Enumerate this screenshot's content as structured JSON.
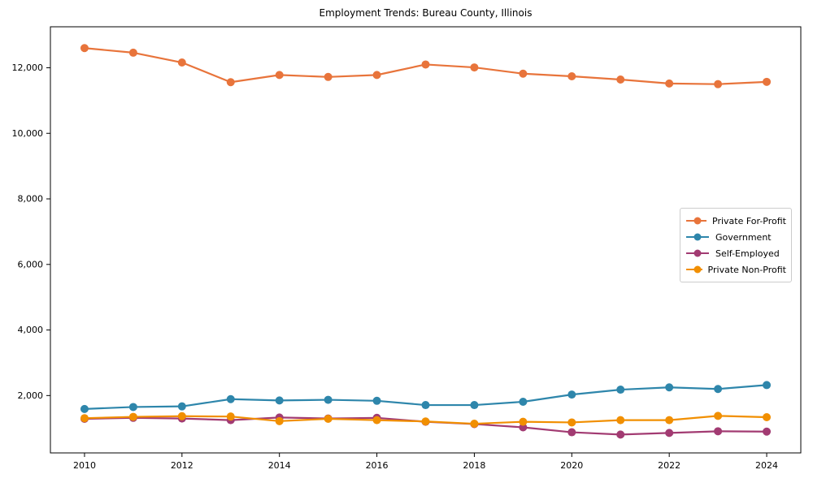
{
  "chart_data": {
    "type": "line",
    "title": "Employment Trends: Bureau County, Illinois",
    "xlabel": "",
    "ylabel": "",
    "x": [
      2010,
      2011,
      2012,
      2013,
      2014,
      2015,
      2016,
      2017,
      2018,
      2019,
      2020,
      2021,
      2022,
      2023,
      2024
    ],
    "series": [
      {
        "name": "Private For-Profit",
        "color": "#E8743B",
        "values": [
          12600,
          12460,
          12160,
          11560,
          11780,
          11720,
          11780,
          12100,
          12010,
          11820,
          11740,
          11640,
          11520,
          11500,
          11570
        ]
      },
      {
        "name": "Government",
        "color": "#2E86AB",
        "values": [
          1590,
          1650,
          1670,
          1890,
          1850,
          1870,
          1840,
          1710,
          1710,
          1810,
          2030,
          2180,
          2250,
          2200,
          2320
        ]
      },
      {
        "name": "Self-Employed",
        "color": "#A23B72",
        "values": [
          1290,
          1320,
          1300,
          1250,
          1330,
          1300,
          1320,
          1200,
          1130,
          1030,
          880,
          810,
          860,
          910,
          900
        ]
      },
      {
        "name": "Private Non-Profit",
        "color": "#F18F01",
        "values": [
          1310,
          1350,
          1370,
          1360,
          1220,
          1290,
          1250,
          1210,
          1140,
          1200,
          1180,
          1250,
          1250,
          1380,
          1340
        ]
      }
    ],
    "xticks": [
      2010,
      2012,
      2014,
      2016,
      2018,
      2020,
      2022,
      2024
    ],
    "yticks": [
      2000,
      4000,
      6000,
      8000,
      10000,
      12000
    ],
    "ytick_labels": [
      "2,000",
      "4,000",
      "6,000",
      "8,000",
      "10,000",
      "12,000"
    ],
    "xlim": [
      2009.3,
      2024.7
    ],
    "ylim": [
      250,
      13250
    ],
    "grid": false,
    "legend_position": "center right",
    "axis_color": "#000000",
    "background_color": "#ffffff"
  }
}
